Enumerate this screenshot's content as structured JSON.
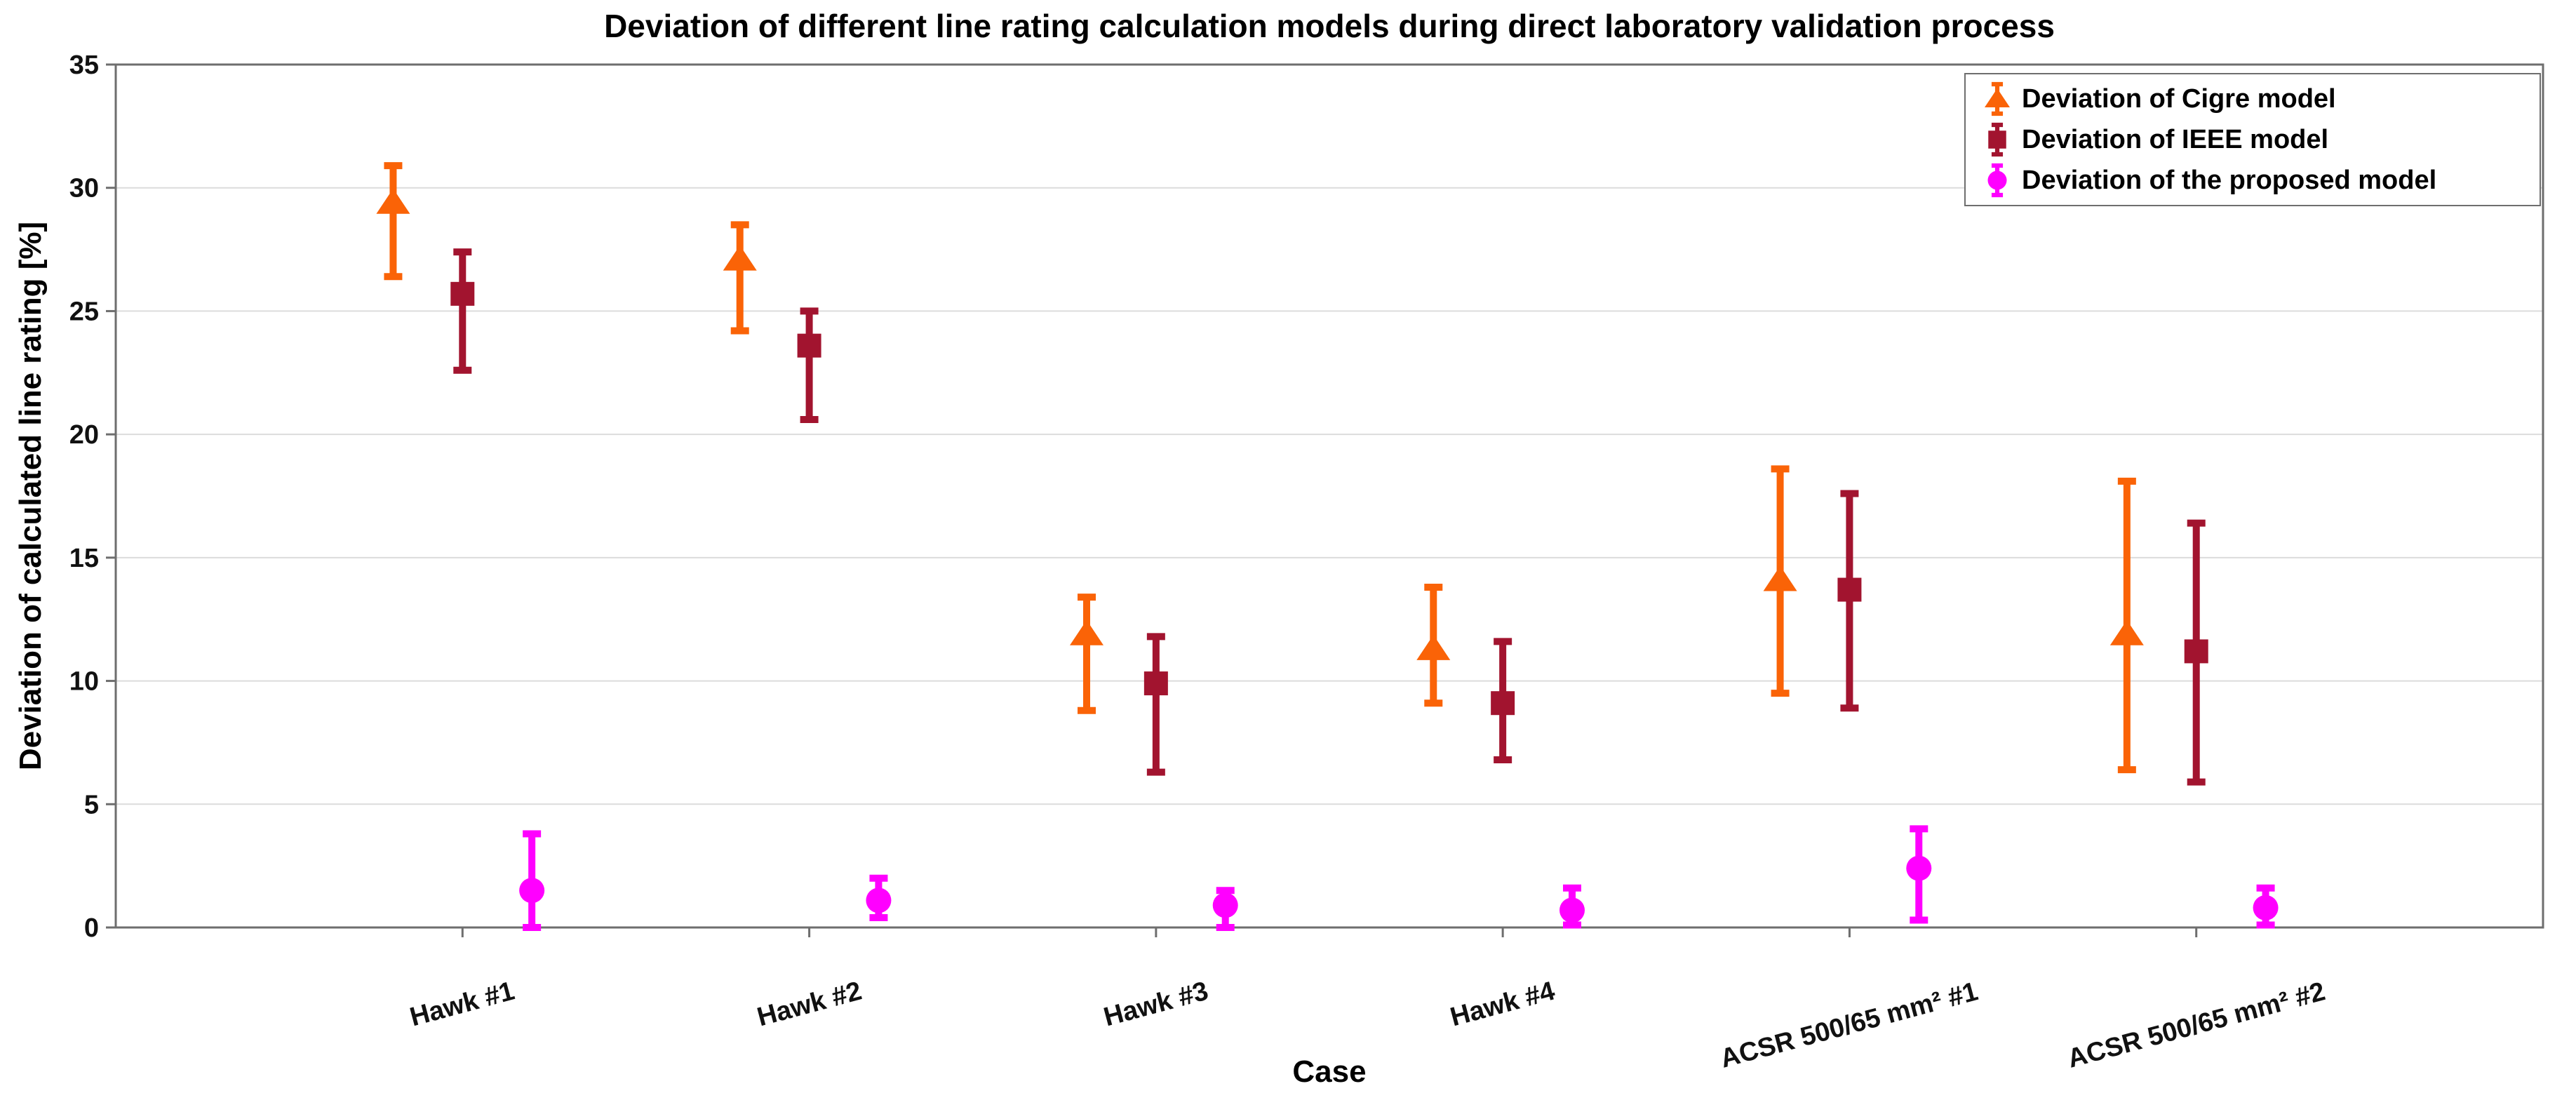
{
  "chart_data": {
    "type": "scatter",
    "subtype": "errorbar",
    "title": "Deviation of different line rating calculation models during direct laboratory validation process",
    "xlabel": "Case",
    "ylabel": "Deviation of calculated line rating [%]",
    "ylim": [
      0,
      35
    ],
    "yticks": [
      0,
      5,
      10,
      15,
      20,
      25,
      30,
      35
    ],
    "grid": "horizontal-only",
    "legend_position": "top-right-inside",
    "xtick_rotation_deg": 15,
    "categories": [
      "Hawk #1",
      "Hawk #2",
      "Hawk #3",
      "Hawk #4",
      "ACSR 500/65 mm² #1",
      "ACSR 500/65 mm² #2"
    ],
    "series": [
      {
        "name": "Deviation of Cigre model",
        "marker": "triangle-up",
        "color": "#FA6307",
        "offset_units": -0.2,
        "values": [
          29.4,
          27.1,
          11.9,
          11.3,
          14.1,
          11.9
        ],
        "err_low": [
          26.4,
          24.2,
          8.8,
          9.1,
          9.5,
          6.4
        ],
        "err_high": [
          30.9,
          28.5,
          13.4,
          13.8,
          18.6,
          18.1
        ]
      },
      {
        "name": "Deviation of IEEE model",
        "marker": "square",
        "color": "#A2142F",
        "offset_units": 0,
        "values": [
          25.7,
          23.6,
          9.9,
          9.1,
          13.7,
          11.2
        ],
        "err_low": [
          22.6,
          20.6,
          6.3,
          6.8,
          8.9,
          5.9
        ],
        "err_high": [
          27.4,
          25.0,
          11.8,
          11.6,
          17.6,
          16.4
        ]
      },
      {
        "name": "Deviation of the proposed model",
        "marker": "circle",
        "color": "#FF00FF",
        "offset_units": 0.2,
        "values": [
          1.5,
          1.1,
          0.9,
          0.7,
          2.4,
          0.8
        ],
        "err_low": [
          0.0,
          0.4,
          0.0,
          0.1,
          0.3,
          0.1
        ],
        "err_high": [
          3.8,
          2.0,
          1.5,
          1.6,
          4.0,
          1.6
        ]
      }
    ],
    "axis_color": "#6e6e6e",
    "grid_color": "#dcdcdc"
  }
}
